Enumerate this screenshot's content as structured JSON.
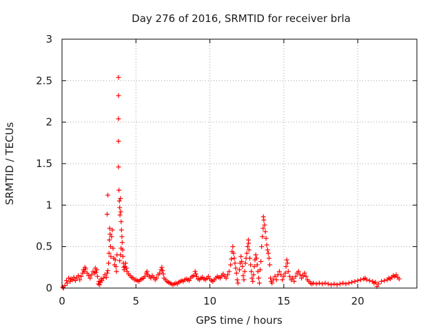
{
  "chart_data": {
    "type": "scatter",
    "title": "Day 276 of 2016, SRMTID for receiver brla",
    "xlabel": "GPS time / hours",
    "ylabel": "SRMTID / TECUs",
    "xlim": [
      0,
      24
    ],
    "ylim": [
      0,
      3
    ],
    "xticks": [
      0,
      5,
      10,
      15,
      20
    ],
    "yticks": [
      0,
      0.5,
      1,
      1.5,
      2,
      2.5,
      3
    ],
    "ytick_labels": [
      "0",
      "0.5",
      "1",
      "1.5",
      "2",
      "2.5",
      "3"
    ],
    "grid": true,
    "marker": "+",
    "color": "#ff0000",
    "series": [
      {
        "name": "SRMTID",
        "points": [
          [
            0.05,
            0.01
          ],
          [
            0.1,
            0.0
          ],
          [
            0.2,
            0.03
          ],
          [
            0.3,
            0.09
          ],
          [
            0.35,
            0.06
          ],
          [
            0.45,
            0.12
          ],
          [
            0.55,
            0.08
          ],
          [
            0.6,
            0.11
          ],
          [
            0.7,
            0.1
          ],
          [
            0.8,
            0.13
          ],
          [
            0.9,
            0.09
          ],
          [
            1.0,
            0.12
          ],
          [
            1.1,
            0.15
          ],
          [
            1.2,
            0.1
          ],
          [
            1.3,
            0.14
          ],
          [
            1.4,
            0.18
          ],
          [
            1.45,
            0.22
          ],
          [
            1.5,
            0.2
          ],
          [
            1.55,
            0.25
          ],
          [
            1.6,
            0.23
          ],
          [
            1.7,
            0.18
          ],
          [
            1.8,
            0.15
          ],
          [
            1.9,
            0.12
          ],
          [
            2.0,
            0.16
          ],
          [
            2.1,
            0.2
          ],
          [
            2.2,
            0.18
          ],
          [
            2.25,
            0.24
          ],
          [
            2.3,
            0.19
          ],
          [
            2.35,
            0.22
          ],
          [
            2.4,
            0.14
          ],
          [
            2.45,
            0.05
          ],
          [
            2.5,
            0.08
          ],
          [
            2.55,
            0.04
          ],
          [
            2.6,
            0.07
          ],
          [
            2.65,
            0.11
          ],
          [
            2.7,
            0.09
          ],
          [
            2.8,
            0.12
          ],
          [
            2.9,
            0.16
          ],
          [
            3.0,
            0.13
          ],
          [
            3.05,
            0.18
          ],
          [
            3.1,
            0.21
          ],
          [
            3.15,
            0.3
          ],
          [
            3.18,
            0.42
          ],
          [
            3.2,
            0.58
          ],
          [
            3.22,
            0.72
          ],
          [
            3.25,
            0.65
          ],
          [
            3.28,
            0.5
          ],
          [
            3.3,
            0.38
          ],
          [
            3.35,
            0.62
          ],
          [
            3.4,
            0.7
          ],
          [
            3.45,
            0.48
          ],
          [
            3.5,
            0.36
          ],
          [
            3.55,
            0.28
          ],
          [
            3.6,
            0.34
          ],
          [
            3.65,
            0.26
          ],
          [
            3.68,
            0.2
          ],
          [
            3.72,
            0.4
          ],
          [
            3.1,
            1.12
          ],
          [
            3.05,
            0.89
          ],
          [
            3.82,
            2.54
          ],
          [
            3.82,
            2.32
          ],
          [
            3.82,
            2.04
          ],
          [
            3.82,
            1.77
          ],
          [
            3.82,
            1.46
          ],
          [
            3.85,
            1.18
          ],
          [
            3.88,
            1.05
          ],
          [
            3.9,
            0.97
          ],
          [
            3.92,
            0.88
          ],
          [
            3.95,
            1.08
          ],
          [
            3.97,
            0.92
          ],
          [
            4.0,
            0.8
          ],
          [
            4.02,
            0.7
          ],
          [
            4.05,
            0.62
          ],
          [
            4.07,
            0.55
          ],
          [
            4.0,
            0.48
          ],
          [
            3.95,
            0.4
          ],
          [
            3.9,
            0.33
          ],
          [
            4.1,
            0.46
          ],
          [
            4.12,
            0.38
          ],
          [
            4.15,
            0.3
          ],
          [
            4.18,
            0.25
          ],
          [
            4.2,
            0.22
          ],
          [
            4.25,
            0.26
          ],
          [
            4.3,
            0.3
          ],
          [
            4.35,
            0.24
          ],
          [
            4.4,
            0.2
          ],
          [
            4.5,
            0.17
          ],
          [
            4.6,
            0.15
          ],
          [
            4.7,
            0.13
          ],
          [
            4.8,
            0.12
          ],
          [
            4.9,
            0.1
          ],
          [
            5.0,
            0.1
          ],
          [
            5.1,
            0.09
          ],
          [
            5.2,
            0.08
          ],
          [
            5.3,
            0.1
          ],
          [
            5.4,
            0.11
          ],
          [
            5.5,
            0.12
          ],
          [
            5.6,
            0.14
          ],
          [
            5.7,
            0.18
          ],
          [
            5.75,
            0.2
          ],
          [
            5.8,
            0.16
          ],
          [
            5.9,
            0.14
          ],
          [
            6.0,
            0.12
          ],
          [
            6.1,
            0.15
          ],
          [
            6.2,
            0.13
          ],
          [
            6.3,
            0.1
          ],
          [
            6.4,
            0.12
          ],
          [
            6.5,
            0.16
          ],
          [
            6.6,
            0.18
          ],
          [
            6.7,
            0.22
          ],
          [
            6.75,
            0.25
          ],
          [
            6.8,
            0.21
          ],
          [
            6.85,
            0.17
          ],
          [
            6.9,
            0.12
          ],
          [
            7.0,
            0.1
          ],
          [
            7.1,
            0.08
          ],
          [
            7.2,
            0.07
          ],
          [
            7.3,
            0.06
          ],
          [
            7.4,
            0.05
          ],
          [
            7.5,
            0.04
          ],
          [
            7.6,
            0.05
          ],
          [
            7.7,
            0.06
          ],
          [
            7.8,
            0.05
          ],
          [
            7.9,
            0.07
          ],
          [
            8.0,
            0.08
          ],
          [
            8.1,
            0.09
          ],
          [
            8.2,
            0.08
          ],
          [
            8.3,
            0.1
          ],
          [
            8.4,
            0.11
          ],
          [
            8.5,
            0.1
          ],
          [
            8.6,
            0.09
          ],
          [
            8.7,
            0.12
          ],
          [
            8.8,
            0.14
          ],
          [
            8.9,
            0.15
          ],
          [
            9.0,
            0.2
          ],
          [
            9.05,
            0.17
          ],
          [
            9.1,
            0.14
          ],
          [
            9.2,
            0.11
          ],
          [
            9.3,
            0.1
          ],
          [
            9.4,
            0.12
          ],
          [
            9.5,
            0.13
          ],
          [
            9.6,
            0.11
          ],
          [
            9.7,
            0.1
          ],
          [
            9.8,
            0.12
          ],
          [
            9.9,
            0.14
          ],
          [
            10.0,
            0.11
          ],
          [
            10.1,
            0.09
          ],
          [
            10.2,
            0.08
          ],
          [
            10.3,
            0.1
          ],
          [
            10.4,
            0.12
          ],
          [
            10.5,
            0.14
          ],
          [
            10.6,
            0.13
          ],
          [
            10.7,
            0.12
          ],
          [
            10.8,
            0.15
          ],
          [
            10.9,
            0.17
          ],
          [
            11.0,
            0.14
          ],
          [
            11.1,
            0.12
          ],
          [
            11.2,
            0.16
          ],
          [
            11.3,
            0.2
          ],
          [
            11.4,
            0.28
          ],
          [
            11.45,
            0.35
          ],
          [
            11.5,
            0.44
          ],
          [
            11.55,
            0.5
          ],
          [
            11.6,
            0.42
          ],
          [
            11.65,
            0.36
          ],
          [
            11.7,
            0.3
          ],
          [
            11.75,
            0.24
          ],
          [
            11.8,
            0.18
          ],
          [
            11.85,
            0.1
          ],
          [
            11.9,
            0.06
          ],
          [
            12.0,
            0.22
          ],
          [
            12.05,
            0.3
          ],
          [
            12.1,
            0.38
          ],
          [
            12.15,
            0.32
          ],
          [
            12.2,
            0.26
          ],
          [
            12.25,
            0.15
          ],
          [
            12.3,
            0.1
          ],
          [
            12.35,
            0.2
          ],
          [
            12.4,
            0.3
          ],
          [
            12.45,
            0.36
          ],
          [
            12.5,
            0.42
          ],
          [
            12.55,
            0.5
          ],
          [
            12.6,
            0.58
          ],
          [
            12.62,
            0.54
          ],
          [
            12.65,
            0.46
          ],
          [
            12.7,
            0.36
          ],
          [
            12.75,
            0.28
          ],
          [
            12.8,
            0.2
          ],
          [
            12.85,
            0.12
          ],
          [
            12.9,
            0.08
          ],
          [
            12.95,
            0.16
          ],
          [
            13.0,
            0.26
          ],
          [
            13.05,
            0.34
          ],
          [
            13.1,
            0.4
          ],
          [
            13.15,
            0.36
          ],
          [
            13.2,
            0.28
          ],
          [
            13.25,
            0.2
          ],
          [
            13.3,
            0.12
          ],
          [
            13.35,
            0.06
          ],
          [
            13.4,
            0.22
          ],
          [
            13.45,
            0.32
          ],
          [
            13.5,
            0.5
          ],
          [
            13.55,
            0.62
          ],
          [
            13.6,
            0.72
          ],
          [
            13.62,
            0.86
          ],
          [
            13.65,
            0.82
          ],
          [
            13.7,
            0.76
          ],
          [
            13.75,
            0.68
          ],
          [
            13.8,
            0.6
          ],
          [
            13.85,
            0.52
          ],
          [
            13.9,
            0.46
          ],
          [
            13.95,
            0.42
          ],
          [
            14.0,
            0.36
          ],
          [
            14.05,
            0.28
          ],
          [
            14.1,
            0.12
          ],
          [
            14.15,
            0.08
          ],
          [
            14.2,
            0.06
          ],
          [
            14.3,
            0.1
          ],
          [
            14.4,
            0.14
          ],
          [
            14.5,
            0.1
          ],
          [
            14.6,
            0.16
          ],
          [
            14.7,
            0.2
          ],
          [
            14.8,
            0.16
          ],
          [
            14.9,
            0.1
          ],
          [
            15.0,
            0.14
          ],
          [
            15.1,
            0.18
          ],
          [
            15.15,
            0.26
          ],
          [
            15.2,
            0.34
          ],
          [
            15.25,
            0.3
          ],
          [
            15.3,
            0.2
          ],
          [
            15.4,
            0.14
          ],
          [
            15.5,
            0.1
          ],
          [
            15.6,
            0.12
          ],
          [
            15.7,
            0.08
          ],
          [
            15.8,
            0.14
          ],
          [
            15.9,
            0.18
          ],
          [
            16.0,
            0.2
          ],
          [
            16.1,
            0.16
          ],
          [
            16.2,
            0.12
          ],
          [
            16.3,
            0.15
          ],
          [
            16.4,
            0.18
          ],
          [
            16.5,
            0.14
          ],
          [
            16.6,
            0.1
          ],
          [
            16.7,
            0.08
          ],
          [
            16.8,
            0.06
          ],
          [
            16.9,
            0.05
          ],
          [
            17.0,
            0.06
          ],
          [
            17.2,
            0.05
          ],
          [
            17.4,
            0.06
          ],
          [
            17.6,
            0.05
          ],
          [
            17.8,
            0.06
          ],
          [
            18.0,
            0.05
          ],
          [
            18.2,
            0.04
          ],
          [
            18.4,
            0.05
          ],
          [
            18.6,
            0.04
          ],
          [
            18.8,
            0.05
          ],
          [
            19.0,
            0.06
          ],
          [
            19.2,
            0.05
          ],
          [
            19.4,
            0.06
          ],
          [
            19.6,
            0.07
          ],
          [
            19.8,
            0.08
          ],
          [
            20.0,
            0.09
          ],
          [
            20.2,
            0.1
          ],
          [
            20.4,
            0.11
          ],
          [
            20.5,
            0.12
          ],
          [
            20.6,
            0.1
          ],
          [
            20.8,
            0.09
          ],
          [
            21.0,
            0.08
          ],
          [
            21.1,
            0.06
          ],
          [
            21.2,
            0.07
          ],
          [
            21.3,
            0.02
          ],
          [
            21.4,
            0.05
          ],
          [
            21.6,
            0.08
          ],
          [
            21.8,
            0.09
          ],
          [
            22.0,
            0.1
          ],
          [
            22.1,
            0.12
          ],
          [
            22.2,
            0.11
          ],
          [
            22.3,
            0.13
          ],
          [
            22.4,
            0.15
          ],
          [
            22.5,
            0.14
          ],
          [
            22.6,
            0.16
          ],
          [
            22.7,
            0.13
          ],
          [
            22.8,
            0.11
          ]
        ]
      }
    ]
  }
}
